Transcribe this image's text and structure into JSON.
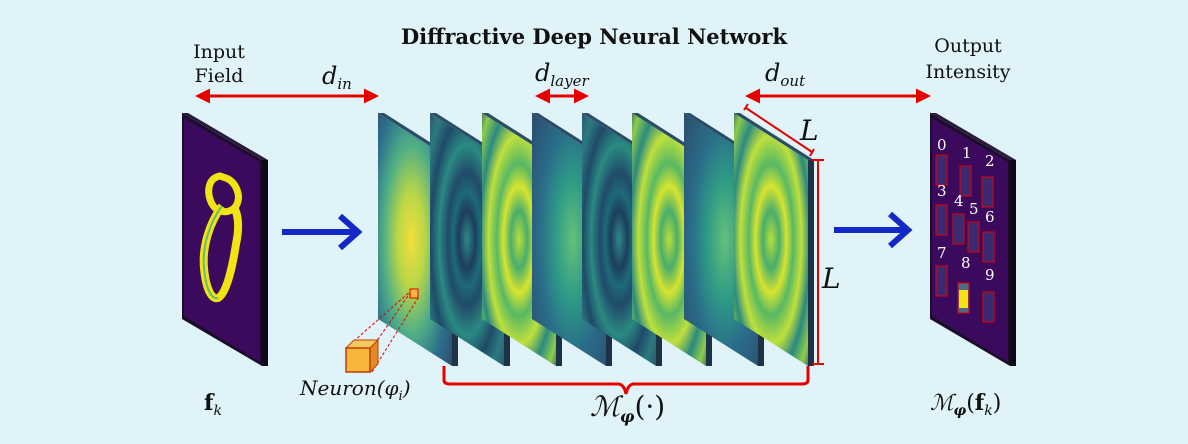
{
  "title": "Diffractive Deep Neural Network",
  "labels": {
    "input_field_line1": "Input",
    "input_field_line2": "Field",
    "output_intensity_line1": "Output",
    "output_intensity_line2": "Intensity",
    "d_in": "d",
    "d_in_sub": "in",
    "d_layer": "d",
    "d_layer_sub": "layer",
    "d_out": "d",
    "d_out_sub": "out",
    "L_top": "L",
    "L_side": "L",
    "f_k": "f",
    "f_k_sub": "k",
    "neuron": "Neuron(φ",
    "neuron_sub": "i",
    "neuron_close": ")",
    "model": "ℳ",
    "model_sub": "φ",
    "model_arg": "(·)",
    "output_model": "ℳ",
    "output_model_sub": "φ",
    "output_model_arg_open": "(",
    "output_model_arg_f": "f",
    "output_model_arg_k": "k",
    "output_model_arg_close": ")"
  },
  "digits": [
    "0",
    "1",
    "2",
    "3",
    "4",
    "5",
    "6",
    "7",
    "8",
    "9"
  ],
  "colors": {
    "background": "#dff3f8",
    "arrow_blue": "#1428c8",
    "dimension_red": "#e60000",
    "panel_dark": "#3b0a5c",
    "digit_yellow": "#f2e414",
    "neuron_orange": "#f6b73c"
  }
}
